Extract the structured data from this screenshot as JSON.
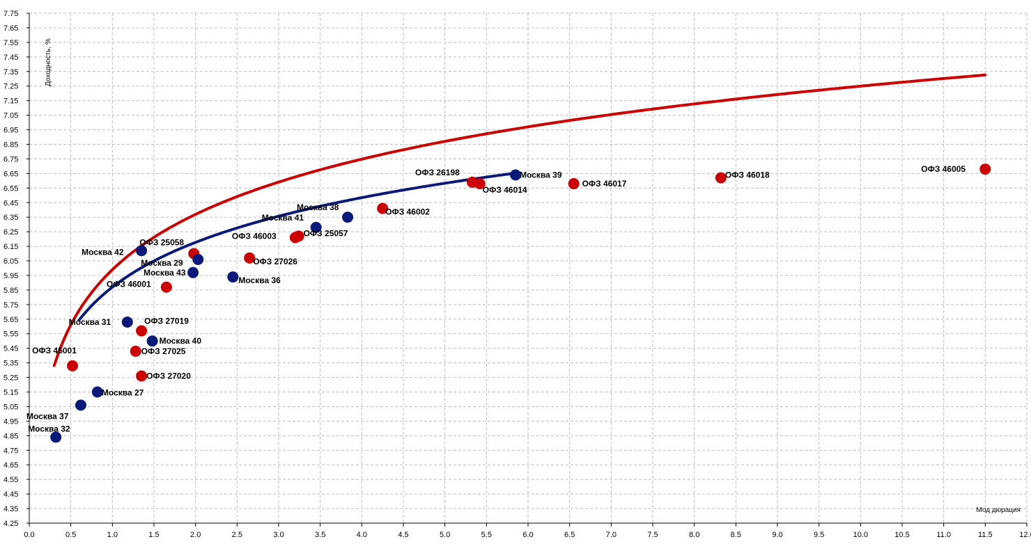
{
  "chart_data": {
    "type": "scatter",
    "title": "",
    "xlabel": "Мод дюрация",
    "ylabel": "Доходность, %",
    "xlim": [
      0,
      12
    ],
    "ylim": [
      4.25,
      7.75
    ],
    "x_tick_step": 0.5,
    "y_tick_step": 0.1,
    "grid": true,
    "colors": {
      "ofz": "#cc0000",
      "moscow": "#0a1a7a",
      "grid": "#bbbbbb"
    },
    "series": [
      {
        "name": "ОФЗ",
        "color": "#cc0000",
        "points": [
          {
            "label": "ОФЗ 45001",
            "x": 0.52,
            "y": 5.33
          },
          {
            "label": "ОФЗ 27020",
            "x": 1.35,
            "y": 5.26
          },
          {
            "label": "ОФЗ 27025",
            "x": 1.28,
            "y": 5.43
          },
          {
            "label": "ОФЗ 27019",
            "x": 1.35,
            "y": 5.57
          },
          {
            "label": "ОФЗ 46001",
            "x": 1.65,
            "y": 5.87
          },
          {
            "label": "ОФЗ 25058",
            "x": 1.98,
            "y": 6.1
          },
          {
            "label": "ОФЗ 27026",
            "x": 2.65,
            "y": 6.07
          },
          {
            "label": "ОФЗ 46003",
            "x": 3.2,
            "y": 6.21
          },
          {
            "label": "ОФЗ 25057",
            "x": 3.24,
            "y": 6.22
          },
          {
            "label": "ОФЗ 46002",
            "x": 4.25,
            "y": 6.41
          },
          {
            "label": "ОФЗ 26198",
            "x": 5.33,
            "y": 6.59
          },
          {
            "label": "ОФЗ 46014",
            "x": 5.42,
            "y": 6.58
          },
          {
            "label": "ОФЗ 46017",
            "x": 6.55,
            "y": 6.58
          },
          {
            "label": "ОФЗ 46018",
            "x": 8.32,
            "y": 6.62
          },
          {
            "label": "ОФЗ 46005",
            "x": 11.5,
            "y": 6.68
          }
        ]
      },
      {
        "name": "Москва",
        "color": "#0a1a7a",
        "points": [
          {
            "label": "Москва 32",
            "x": 0.32,
            "y": 4.84
          },
          {
            "label": "Москва 37",
            "x": 0.62,
            "y": 5.06
          },
          {
            "label": "Москва 27",
            "x": 0.82,
            "y": 5.15
          },
          {
            "label": "Москва 31",
            "x": 1.18,
            "y": 5.63
          },
          {
            "label": "Москва 40",
            "x": 1.48,
            "y": 5.5
          },
          {
            "label": "Москва 42",
            "x": 1.35,
            "y": 6.12
          },
          {
            "label": "Москва 43",
            "x": 1.97,
            "y": 5.97
          },
          {
            "label": "Москва 29",
            "x": 2.03,
            "y": 6.06
          },
          {
            "label": "Москва 36",
            "x": 2.45,
            "y": 5.94
          },
          {
            "label": "Москва 41",
            "x": 3.45,
            "y": 6.28
          },
          {
            "label": "Москва 38",
            "x": 3.83,
            "y": 6.35
          },
          {
            "label": "Москва 39",
            "x": 5.85,
            "y": 6.64
          }
        ]
      }
    ],
    "curves": [
      {
        "color": "#cc0000",
        "x_from": 0.3,
        "x_to": 11.5,
        "a": 5.99,
        "b": 0.547
      },
      {
        "color": "#0a1a7a",
        "x_from": 0.6,
        "x_to": 5.85,
        "a": 5.87,
        "b": 0.443
      }
    ]
  }
}
